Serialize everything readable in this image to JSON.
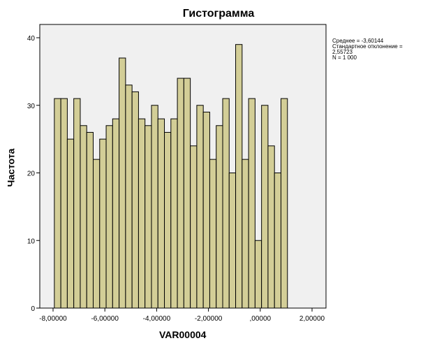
{
  "chart_data": {
    "type": "bar",
    "title": "Гистограмма",
    "xlabel": "VAR00004",
    "ylabel": "Частота",
    "bin_start": -7.95,
    "bin_width": 0.25,
    "values": [
      31,
      31,
      25,
      31,
      27,
      26,
      22,
      25,
      27,
      28,
      37,
      33,
      32,
      28,
      27,
      30,
      28,
      26,
      28,
      34,
      34,
      24,
      30,
      29,
      22,
      27,
      31,
      20,
      39,
      22,
      31,
      10,
      30,
      24,
      20,
      31
    ],
    "xlim": [
      -8.55,
      2.55
    ],
    "ylim": [
      0,
      42
    ],
    "xticks": [
      -8,
      -6,
      -4,
      -2,
      0,
      2
    ],
    "xtick_labels": [
      "-8,00000",
      "-6,00000",
      "-4,00000",
      "-2,00000",
      ",00000",
      "2,00000"
    ],
    "yticks": [
      0,
      10,
      20,
      30,
      40
    ],
    "ytick_labels": [
      "0",
      "10",
      "20",
      "30",
      "40"
    ],
    "bar_color": "#d3ce97",
    "plot_bg": "#f0f0f0",
    "stats": {
      "mean": "Среднее = -3,60144",
      "sd_label": "Стандартное отклонение =",
      "sd_value": "2,55723",
      "n": "N = 1 000"
    }
  }
}
